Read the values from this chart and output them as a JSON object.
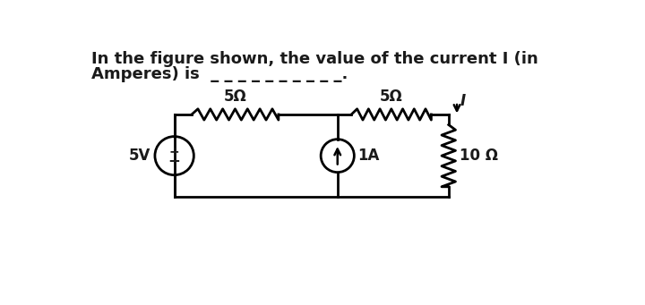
{
  "title_line1": "In the figure shown, the value of the current I (in",
  "title_line2": "Amperes) is  _ _ _ _ _ _ _ _ _ _.",
  "bg_color": "#ffffff",
  "line_color": "#000000",
  "text_color": "#1a1a1a",
  "font_size": 13,
  "label_5ohm_left": "5Ω",
  "label_5ohm_right": "5Ω",
  "label_10ohm": "10 Ω",
  "label_5v": "5V",
  "label_1a": "1A",
  "label_I": "I",
  "lw": 2.0
}
